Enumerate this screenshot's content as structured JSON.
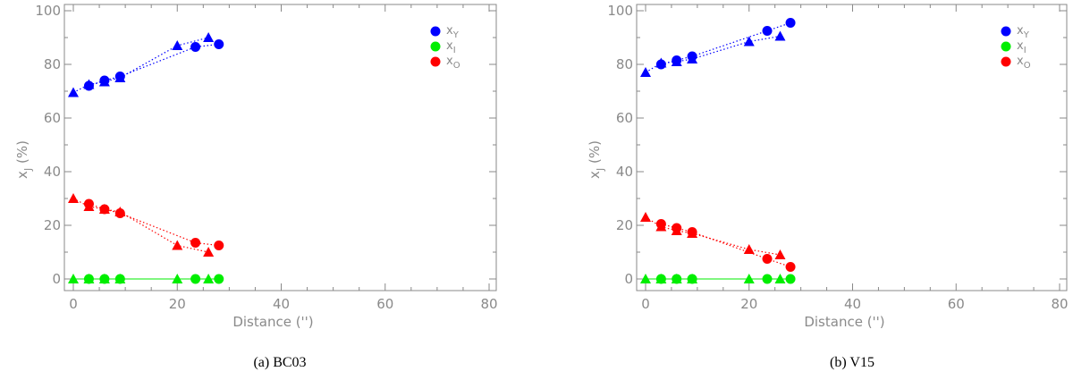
{
  "chart_data": [
    {
      "type": "scatter",
      "caption": "(a) BC03",
      "xlabel": "Distance ('')",
      "ylabel_main": "x",
      "ylabel_sub": "J",
      "ylabel_tail": " (%)",
      "xlim": [
        0,
        80
      ],
      "ylim": [
        0,
        100
      ],
      "xticks": [
        0,
        20,
        40,
        60,
        80
      ],
      "yticks": [
        0,
        20,
        40,
        60,
        80,
        100
      ],
      "grid": false,
      "legend_position": "top-right",
      "series": [
        {
          "name": "x_Y",
          "label_main": "x",
          "label_sub": "Y",
          "color": "#0000ff",
          "line_style": "dotted",
          "circles": [
            [
              3,
              72
            ],
            [
              6,
              74
            ],
            [
              9,
              75.5
            ],
            [
              23.5,
              86.5
            ],
            [
              28,
              87.5
            ]
          ],
          "triangles": [
            [
              0,
              69.5
            ],
            [
              3,
              72.5
            ],
            [
              6,
              73.5
            ],
            [
              9,
              75
            ],
            [
              20,
              87
            ],
            [
              26,
              90
            ]
          ]
        },
        {
          "name": "x_I",
          "label_main": "x",
          "label_sub": "I",
          "color": "#00ee00",
          "line_style": "solid",
          "circles": [
            [
              3,
              0
            ],
            [
              6,
              0
            ],
            [
              9,
              0
            ],
            [
              23.5,
              0
            ],
            [
              28,
              0
            ]
          ],
          "triangles": [
            [
              0,
              0
            ],
            [
              3,
              0
            ],
            [
              6,
              0
            ],
            [
              9,
              0
            ],
            [
              20,
              0
            ],
            [
              26,
              0
            ]
          ]
        },
        {
          "name": "x_O",
          "label_main": "x",
          "label_sub": "O",
          "color": "#ff0000",
          "line_style": "dotted",
          "circles": [
            [
              3,
              28
            ],
            [
              6,
              26
            ],
            [
              9,
              24.5
            ],
            [
              23.5,
              13.5
            ],
            [
              28,
              12.5
            ]
          ],
          "triangles": [
            [
              0,
              30
            ],
            [
              3,
              27
            ],
            [
              6,
              26
            ],
            [
              9,
              25
            ],
            [
              20,
              12.5
            ],
            [
              26,
              10
            ]
          ]
        }
      ]
    },
    {
      "type": "scatter",
      "caption": "(b) V15",
      "xlabel": "Distance ('')",
      "ylabel_main": "x",
      "ylabel_sub": "J",
      "ylabel_tail": " (%)",
      "xlim": [
        0,
        80
      ],
      "ylim": [
        0,
        100
      ],
      "xticks": [
        0,
        20,
        40,
        60,
        80
      ],
      "yticks": [
        0,
        20,
        40,
        60,
        80,
        100
      ],
      "grid": false,
      "legend_position": "top-right",
      "series": [
        {
          "name": "x_Y",
          "label_main": "x",
          "label_sub": "Y",
          "color": "#0000ff",
          "line_style": "dotted",
          "circles": [
            [
              3,
              80
            ],
            [
              6,
              81.5
            ],
            [
              9,
              83
            ],
            [
              23.5,
              92.5
            ],
            [
              28,
              95.5
            ]
          ],
          "triangles": [
            [
              0,
              77
            ],
            [
              3,
              80.5
            ],
            [
              6,
              81
            ],
            [
              9,
              82
            ],
            [
              20,
              88.5
            ],
            [
              26,
              90.5
            ]
          ]
        },
        {
          "name": "x_I",
          "label_main": "x",
          "label_sub": "I",
          "color": "#00ee00",
          "line_style": "solid",
          "circles": [
            [
              3,
              0
            ],
            [
              6,
              0
            ],
            [
              9,
              0
            ],
            [
              23.5,
              0
            ],
            [
              28,
              0
            ]
          ],
          "triangles": [
            [
              0,
              0
            ],
            [
              3,
              0
            ],
            [
              6,
              0
            ],
            [
              9,
              0
            ],
            [
              20,
              0
            ],
            [
              26,
              0
            ]
          ]
        },
        {
          "name": "x_O",
          "label_main": "x",
          "label_sub": "O",
          "color": "#ff0000",
          "line_style": "dotted",
          "circles": [
            [
              3,
              20.5
            ],
            [
              6,
              19
            ],
            [
              9,
              17.5
            ],
            [
              23.5,
              7.5
            ],
            [
              28,
              4.5
            ]
          ],
          "triangles": [
            [
              0,
              23
            ],
            [
              3,
              19.5
            ],
            [
              6,
              18
            ],
            [
              9,
              17
            ],
            [
              20,
              11
            ],
            [
              26,
              9
            ]
          ]
        }
      ]
    }
  ]
}
